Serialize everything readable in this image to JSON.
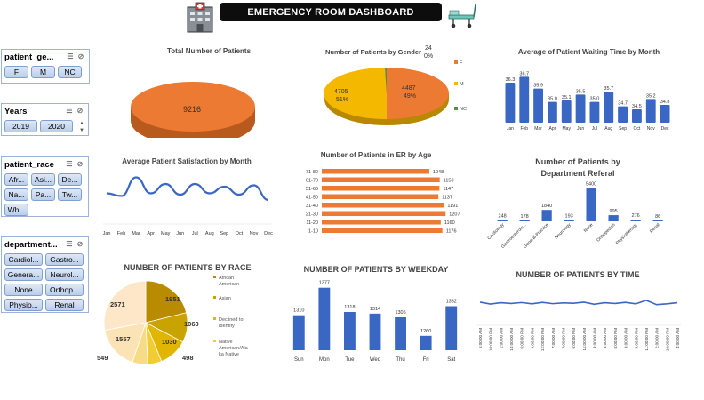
{
  "header": {
    "title": "EMERGENCY ROOM DASHBOARD"
  },
  "slicers": {
    "gender": {
      "title": "patient_ge...",
      "items": [
        "F",
        "M",
        "NC"
      ]
    },
    "years": {
      "title": "Years",
      "items": [
        "2019",
        "2020"
      ]
    },
    "race": {
      "title": "patient_race",
      "items": [
        "Afr...",
        "Asi...",
        "De...",
        "Na...",
        "Pa...",
        "Tw...",
        "Wh..."
      ]
    },
    "department": {
      "title": "department...",
      "items": [
        "Cardiol...",
        "Gastro...",
        "Genera...",
        "Neurol...",
        "None",
        "Orthop...",
        "Physio...",
        "Renal"
      ]
    }
  },
  "chart_data": [
    {
      "id": "total-patients",
      "type": "pie",
      "title": "Total Number of Patients",
      "values": [
        9216
      ],
      "labels": [
        "9216"
      ],
      "colors": [
        "#ec7a32"
      ]
    },
    {
      "id": "gender",
      "type": "pie",
      "title": "Number of Patients by Gender",
      "categories": [
        "F",
        "M",
        "NC"
      ],
      "values": [
        4487,
        4705,
        24
      ],
      "percents": [
        "49%",
        "51%",
        "0%"
      ],
      "colors": [
        "#ec7a32",
        "#f5b800",
        "#5c8a4a"
      ],
      "legend": "right"
    },
    {
      "id": "waiting-time",
      "type": "bar",
      "title": "Average of Patient Waiting Time by Month",
      "categories": [
        "Jan",
        "Feb",
        "Mar",
        "Apr",
        "May",
        "Jun",
        "Jul",
        "Aug",
        "Sep",
        "Oct",
        "Nov",
        "Dec"
      ],
      "values": [
        36.3,
        36.7,
        35.9,
        35.0,
        35.1,
        35.5,
        35.0,
        35.7,
        34.7,
        34.5,
        35.2,
        34.8
      ],
      "labels": [
        "36.3",
        "36.7",
        "35.9",
        "35.0",
        "35.1",
        "35.5",
        "35.0",
        "35.7",
        "34.7",
        "34.5",
        "35.2",
        "34.8"
      ],
      "ylim": [
        33.6,
        37.2
      ],
      "color": "#3a67c4"
    },
    {
      "id": "satisfaction",
      "type": "line",
      "title": "Average Patient Satisfaction by Month",
      "categories": [
        "Jan",
        "Feb",
        "Mar",
        "Apr",
        "May",
        "Jun",
        "Jul",
        "Aug",
        "Sep",
        "Oct",
        "Nov",
        "Dec"
      ],
      "values": [
        4.95,
        4.85,
        5.55,
        4.95,
        5.3,
        4.9,
        5.3,
        4.95,
        5.2,
        4.9,
        5.25,
        4.7
      ],
      "ylim": [
        4.4,
        5.8
      ],
      "color": "#3a67c4"
    },
    {
      "id": "age",
      "type": "bar",
      "orientation": "horizontal",
      "title": "Number of Patients in ER by Age",
      "categories": [
        "71-80",
        "61-70",
        "51-60",
        "41-50",
        "31-40",
        "21-30",
        "11-20",
        "1-10"
      ],
      "values": [
        1048,
        1150,
        1147,
        1137,
        1191,
        1207,
        1160,
        1176
      ],
      "labels": [
        "1048",
        "1150",
        "1147",
        "1137",
        "1191",
        "1207",
        "1160",
        "1176"
      ],
      "xlim": [
        0,
        1300
      ],
      "color": "#ec7a32"
    },
    {
      "id": "department",
      "type": "bar",
      "title": "Number of Patients by Department Referal",
      "categories": [
        "Cardiology",
        "Gastroenterolo...",
        "General Practice",
        "Neurology",
        "None",
        "Orthopedics",
        "Physiotherapy",
        "Renal"
      ],
      "values": [
        248,
        178,
        1840,
        193,
        5400,
        995,
        276,
        86
      ],
      "labels": [
        "248",
        "178",
        "1840",
        "193",
        "5400",
        "995",
        "276",
        "86"
      ],
      "ylim": [
        0,
        5600
      ],
      "color": "#3a67c4"
    },
    {
      "id": "race",
      "type": "pie",
      "title": "NUMBER OF PATIENTS BY RACE",
      "categories": [
        "African American",
        "Asian",
        "Declined to Identify",
        "Native American/Alaska Native",
        "Pacific Islander",
        "Two or More Races",
        "White"
      ],
      "legend_labels": [
        "African\nAmerican",
        "Asian",
        "Declined to\nIdentify",
        "Native\nAmerican/Ala\nka Native"
      ],
      "values": [
        1951,
        1060,
        1030,
        498,
        549,
        1557,
        2571
      ],
      "labels": [
        "1951",
        "1060",
        "1030",
        "498",
        "549",
        "1557",
        "2571"
      ],
      "colors": [
        "#b98b00",
        "#c9a400",
        "#e0b600",
        "#f2cc33",
        "#f7dc85",
        "#fbe3b6",
        "#fde7c8"
      ],
      "legend": "right"
    },
    {
      "id": "weekday",
      "type": "bar",
      "title": "NUMBER OF PATIENTS BY WEEKDAY",
      "categories": [
        "Sun",
        "Mon",
        "Tue",
        "Wed",
        "Thu",
        "Fri",
        "Sat"
      ],
      "values": [
        1310,
        1377,
        1318,
        1314,
        1305,
        1260,
        1332
      ],
      "labels": [
        "1310",
        "1377",
        "1318",
        "1314",
        "1305",
        "1260",
        "1332"
      ],
      "ylim": [
        1225,
        1385
      ],
      "color": "#3a67c4"
    },
    {
      "id": "time",
      "type": "line",
      "title": "NUMBER OF PATIENTS BY TIME",
      "categories": [
        "5:00:00 AM",
        "10:00:00 PM",
        "1:00:00 AM",
        "10:00:00 AM",
        "6:00:00 PM",
        "9:00:00 PM",
        "12:00:00 PM",
        "7:00:00 AM",
        "7:00:00 PM",
        "6:00:00 PM",
        "11:00:00 AM",
        "4:00:00 AM",
        "3:00:00 AM",
        "8:00:00 PM",
        "9:00:00 AM",
        "5:00:00 PM",
        "11:00:00 PM",
        "2:00:00 AM",
        "10:00:00 PM",
        "4:00:00 AM"
      ],
      "values": [
        405,
        395,
        402,
        398,
        403,
        396,
        404,
        397,
        401,
        399,
        405,
        394,
        402,
        398,
        404,
        396,
        415,
        392,
        396,
        402
      ],
      "ylim": [
        300,
        500
      ],
      "color": "#3a67c4"
    }
  ]
}
